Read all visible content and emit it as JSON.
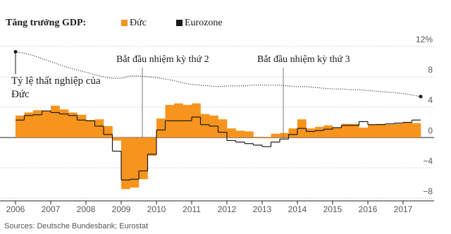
{
  "chart_data": {
    "type": "step",
    "legend_title": "Tăng trưởng GDP:",
    "source": "Sources: Deutsche Bundesbank; Eurostat",
    "x": [
      2006,
      2006.25,
      2006.5,
      2006.75,
      2007,
      2007.25,
      2007.5,
      2007.75,
      2008,
      2008.25,
      2008.5,
      2008.75,
      2009,
      2009.25,
      2009.5,
      2009.75,
      2010,
      2010.25,
      2010.5,
      2010.75,
      2011,
      2011.25,
      2011.5,
      2011.75,
      2012,
      2012.25,
      2012.5,
      2012.75,
      2013,
      2013.25,
      2013.5,
      2013.75,
      2014,
      2014.25,
      2014.5,
      2014.75,
      2015,
      2015.25,
      2015.5,
      2015.75,
      2016,
      2016.25,
      2016.5,
      2016.75,
      2017,
      2017.25
    ],
    "series": [
      {
        "name": "Đức",
        "color": "#f7941d",
        "values": [
          2.9,
          3.3,
          3.6,
          3.5,
          4.2,
          3.7,
          3.3,
          3.0,
          2.3,
          2.4,
          1.5,
          -0.4,
          -6.8,
          -6.6,
          -5.5,
          -2.4,
          2.5,
          4.3,
          4.5,
          4.3,
          4.5,
          3.1,
          2.9,
          2.4,
          1.2,
          0.9,
          0.8,
          0.1,
          -0.1,
          0.5,
          0.6,
          1.2,
          2.4,
          1.2,
          1.4,
          1.6,
          1.3,
          1.8,
          1.8,
          1.3,
          1.7,
          1.8,
          1.7,
          1.8,
          2.0,
          1.9
        ]
      },
      {
        "name": "Eurozone",
        "color": "#1a1a1a",
        "values": [
          2.3,
          2.9,
          3.0,
          3.5,
          3.3,
          3.1,
          2.9,
          2.3,
          2.2,
          1.5,
          0.4,
          -1.8,
          -5.6,
          -5.5,
          -4.4,
          -2.2,
          1.0,
          2.2,
          2.2,
          2.2,
          2.7,
          1.7,
          1.5,
          0.7,
          -0.4,
          -0.6,
          -0.8,
          -1.0,
          -1.2,
          -0.6,
          -0.2,
          0.4,
          1.2,
          0.8,
          0.9,
          1.1,
          1.3,
          1.6,
          1.6,
          2.1,
          1.7,
          1.7,
          1.8,
          1.9,
          2.0,
          2.3
        ]
      }
    ],
    "unemployment": {
      "name": "Tỷ lệ thất nghiệp của Đức",
      "color": "#1a1a1a",
      "x": [
        2006,
        2006.25,
        2006.5,
        2006.75,
        2007,
        2007.25,
        2007.5,
        2007.75,
        2008,
        2008.25,
        2008.5,
        2008.75,
        2009,
        2009.25,
        2009.5,
        2009.75,
        2010,
        2010.25,
        2010.5,
        2010.75,
        2011,
        2011.25,
        2011.5,
        2011.75,
        2012,
        2012.25,
        2012.5,
        2012.75,
        2013,
        2013.25,
        2013.5,
        2013.75,
        2014,
        2014.25,
        2014.5,
        2014.75,
        2015,
        2015.25,
        2015.5,
        2015.75,
        2016,
        2016.25,
        2016.5,
        2016.75,
        2017,
        2017.25,
        2017.5
      ],
      "values": [
        11.3,
        11.1,
        10.8,
        10.4,
        10.0,
        9.6,
        9.2,
        8.9,
        8.6,
        8.3,
        8.0,
        7.8,
        7.8,
        8.1,
        8.1,
        8.0,
        7.9,
        7.7,
        7.5,
        7.2,
        7.0,
        6.9,
        6.8,
        6.7,
        6.8,
        6.8,
        6.8,
        6.9,
        6.9,
        6.9,
        6.9,
        6.8,
        6.7,
        6.7,
        6.6,
        6.5,
        6.4,
        6.4,
        6.3,
        6.3,
        6.2,
        6.1,
        6.0,
        5.9,
        5.8,
        5.6,
        5.4
      ]
    },
    "annotations": [
      {
        "text": "Bắt đầu nhiệm kỳ thứ 2",
        "x": 2009.6
      },
      {
        "text": "Bắt đầu nhiệm kỳ thứ 3",
        "x": 2013.6
      }
    ],
    "xlim": [
      2005.7,
      2017.9
    ],
    "xticks": [
      2006,
      2007,
      2008,
      2009,
      2010,
      2011,
      2012,
      2013,
      2014,
      2015,
      2016,
      2017
    ],
    "ylim": [
      -9,
      14.5
    ],
    "yticks": [
      {
        "value": 12,
        "label": "12%"
      },
      8,
      4,
      0,
      {
        "value": -4,
        "label": "−4"
      },
      {
        "value": -8,
        "label": "−8"
      }
    ],
    "grid": true
  }
}
